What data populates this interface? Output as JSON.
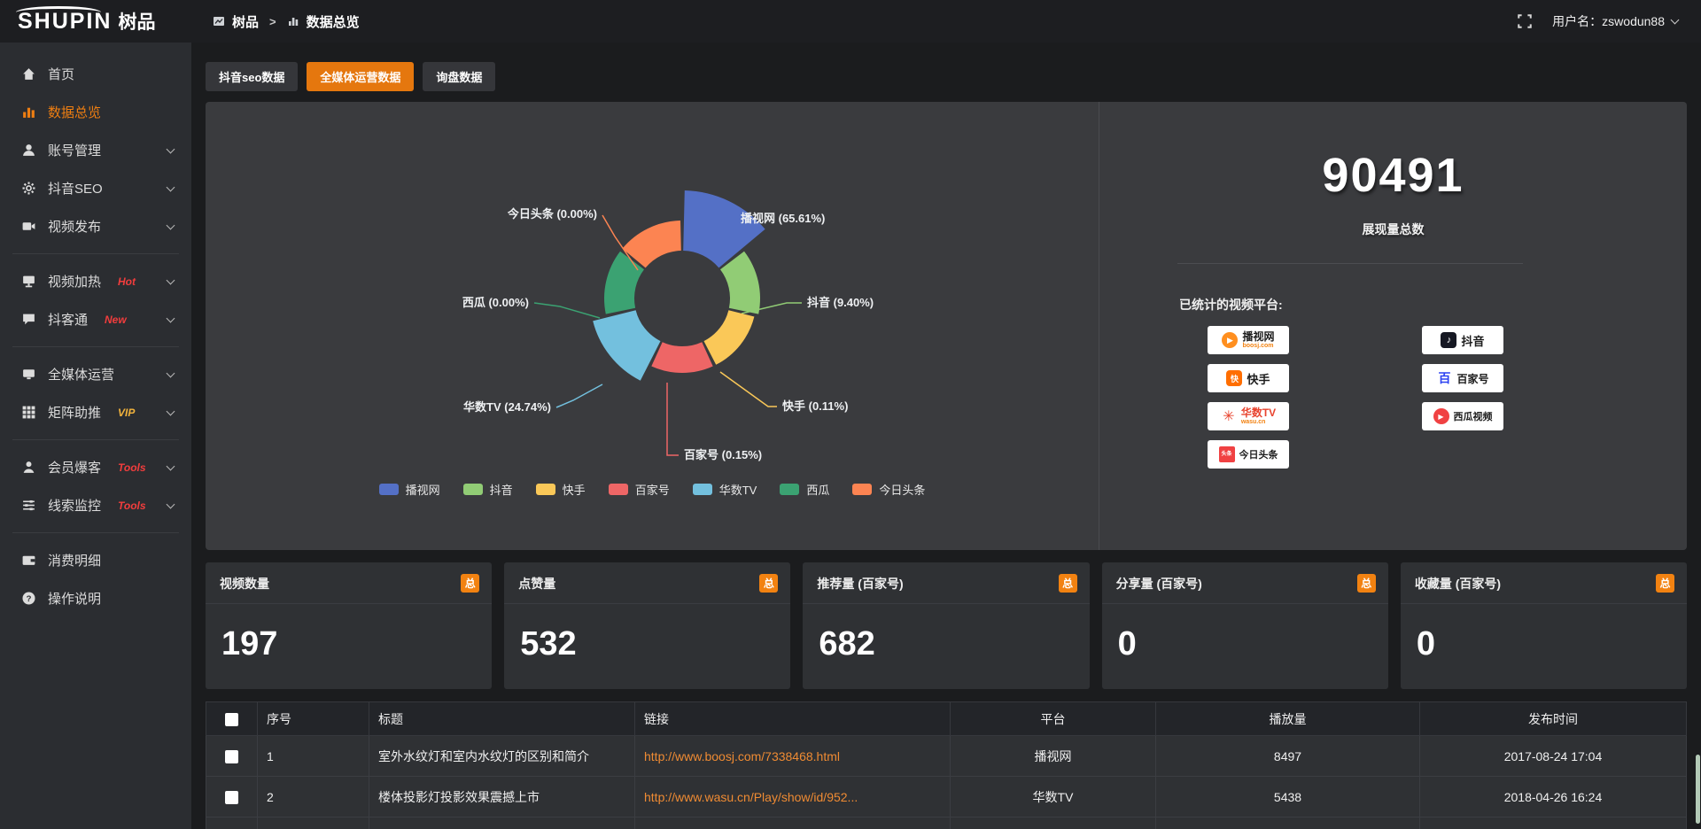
{
  "topbar": {
    "logo_en": "SHUPIN",
    "logo_cn": "树品",
    "breadcrumb": {
      "root": "树品",
      "separator": ">",
      "current": "数据总览"
    },
    "username": "用户名：zswodun88"
  },
  "sidebar": {
    "items": [
      {
        "label": "首页",
        "icon": "home-icon"
      },
      {
        "label": "数据总览",
        "icon": "bar-chart-icon",
        "active": true
      },
      {
        "label": "账号管理",
        "icon": "user-icon",
        "expandable": true
      },
      {
        "label": "抖音SEO",
        "icon": "gear-icon",
        "expandable": true
      },
      {
        "label": "视频发布",
        "icon": "video-icon",
        "expandable": true
      },
      {
        "label": "视频加热",
        "icon": "screen-icon",
        "badge": "Hot",
        "badge_type": "red",
        "expandable": true
      },
      {
        "label": "抖客通",
        "icon": "chat-icon",
        "badge": "New",
        "badge_type": "red",
        "expandable": true
      },
      {
        "label": "全媒体运营",
        "icon": "monitor-icon",
        "expandable": true
      },
      {
        "label": "矩阵助推",
        "icon": "grid-icon",
        "badge": "VIP",
        "badge_type": "gold",
        "expandable": true
      },
      {
        "label": "会员爆客",
        "icon": "member-icon",
        "badge": "Tools",
        "badge_type": "red",
        "expandable": true
      },
      {
        "label": "线索监控",
        "icon": "sliders-icon",
        "badge": "Tools",
        "badge_type": "red",
        "expandable": true
      },
      {
        "label": "消费明细",
        "icon": "wallet-icon"
      },
      {
        "label": "操作说明",
        "icon": "help-icon"
      }
    ]
  },
  "tabs": [
    {
      "label": "抖音seo数据",
      "active": false
    },
    {
      "label": "全媒体运营数据",
      "active": true
    },
    {
      "label": "询盘数据",
      "active": false
    }
  ],
  "chart_data": {
    "type": "pie",
    "subtype": "nightingale-rose-donut",
    "title": "",
    "legend_position": "bottom",
    "series": [
      {
        "name": "播视网",
        "pct": 65.61,
        "color": "#5470c6"
      },
      {
        "name": "抖音",
        "pct": 9.4,
        "color": "#91cc75"
      },
      {
        "name": "快手",
        "pct": 0.11,
        "color": "#fac858"
      },
      {
        "name": "百家号",
        "pct": 0.15,
        "color": "#ee6666"
      },
      {
        "name": "华数TV",
        "pct": 24.74,
        "color": "#73c0de"
      },
      {
        "name": "西瓜",
        "pct": 0.0,
        "color": "#3ba272"
      },
      {
        "name": "今日头条",
        "pct": 0.0,
        "color": "#fc8452"
      }
    ]
  },
  "summary": {
    "total_value": "90491",
    "total_label": "展现量总数",
    "platforms_title": "已统计的视频平台:",
    "platforms_left": [
      {
        "name": "播视网",
        "sub": "boosj.com"
      },
      {
        "name": "快手"
      },
      {
        "name": "华数TV",
        "sub": "wasu.cn"
      },
      {
        "name": "今日头条"
      }
    ],
    "platforms_right": [
      {
        "name": "抖音"
      },
      {
        "name": "百家号"
      },
      {
        "name": "西瓜视频"
      }
    ],
    "toutiao_glyph": "头条",
    "baijiahao_glyph": "百",
    "douyin_glyph": "♪",
    "play_glyph": "▶",
    "wasu_glyph": "✳",
    "kuaishou_glyph": "快"
  },
  "stat_cards": [
    {
      "title": "视频数量",
      "badge": "总",
      "value": "197"
    },
    {
      "title": "点赞量",
      "badge": "总",
      "value": "532"
    },
    {
      "title": "推荐量 (百家号)",
      "badge": "总",
      "value": "682"
    },
    {
      "title": "分享量 (百家号)",
      "badge": "总",
      "value": "0"
    },
    {
      "title": "收藏量 (百家号)",
      "badge": "总",
      "value": "0"
    }
  ],
  "table": {
    "headers": [
      "序号",
      "标题",
      "链接",
      "平台",
      "播放量",
      "发布时间"
    ],
    "rows": [
      {
        "num": "1",
        "title": "室外水纹灯和室内水纹灯的区别和简介",
        "link": "http://www.boosj.com/7338468.html",
        "platform": "播视网",
        "plays": "8497",
        "time": "2017-08-24 17:04"
      },
      {
        "num": "2",
        "title": "楼体投影灯投影效果震撼上市",
        "link": "http://www.wasu.cn/Play/show/id/952...",
        "platform": "华数TV",
        "plays": "5438",
        "time": "2018-04-26 16:24"
      }
    ]
  },
  "colors": {
    "accent": "#ee7e12",
    "badge": "#f28211"
  }
}
